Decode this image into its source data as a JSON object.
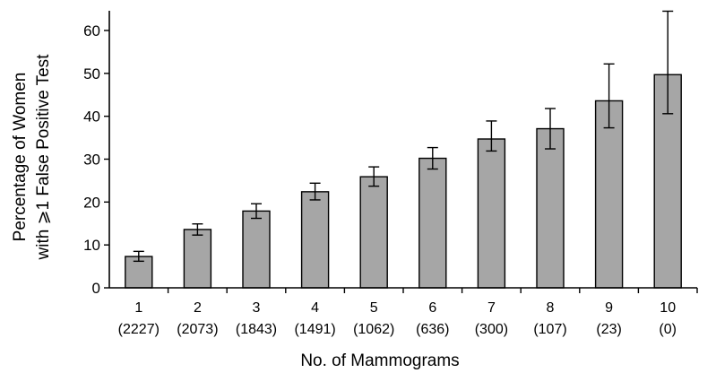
{
  "chart_data": {
    "type": "bar",
    "title": "",
    "xlabel": "No. of Mammograms",
    "ylabel": [
      "Percentage of Women",
      "with ⩾1 False Positive Test"
    ],
    "ylim": [
      0,
      65
    ],
    "yticks": [
      0,
      10,
      20,
      30,
      40,
      50,
      60
    ],
    "grid": false,
    "legend": "none",
    "bar_color": "#a6a6a6",
    "categories": [
      "1",
      "2",
      "3",
      "4",
      "5",
      "6",
      "7",
      "8",
      "9",
      "10"
    ],
    "sample_sizes": [
      "(2227)",
      "(2073)",
      "(1843)",
      "(1491)",
      "(1062)",
      "(636)",
      "(300)",
      "(107)",
      "(23)",
      "(0)"
    ],
    "values": [
      7.3,
      13.6,
      17.9,
      22.4,
      25.9,
      30.2,
      34.7,
      37.1,
      43.6,
      49.7
    ],
    "ci_lower": [
      6.2,
      12.3,
      16.2,
      20.5,
      23.7,
      27.7,
      31.9,
      32.4,
      37.3,
      40.6
    ],
    "ci_upper": [
      8.5,
      14.9,
      19.6,
      24.4,
      28.2,
      32.7,
      38.9,
      41.8,
      52.2,
      64.5
    ]
  }
}
